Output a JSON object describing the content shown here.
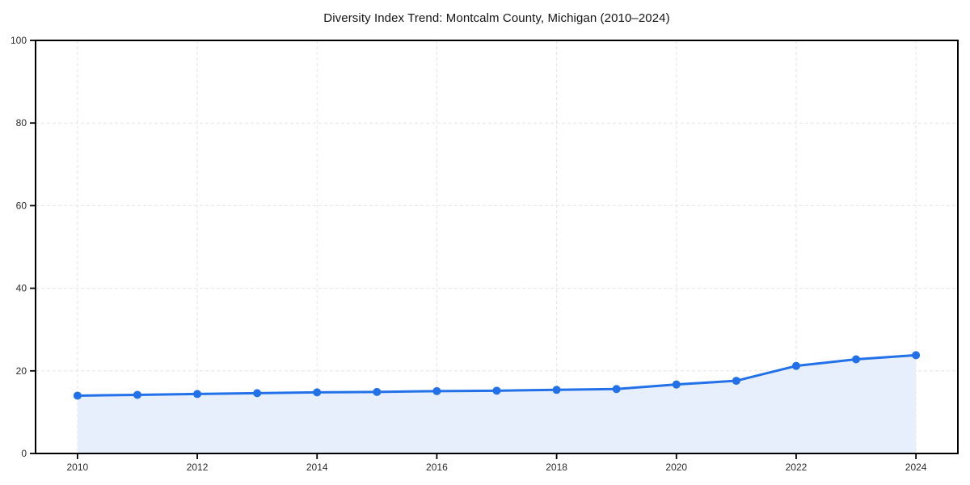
{
  "page": {
    "background_color": "#ffffff"
  },
  "chart_data": {
    "type": "line",
    "title": "Diversity Index Trend: Montcalm County, Michigan (2010–2024)",
    "xlabel": "",
    "ylabel": "",
    "x": [
      2010,
      2011,
      2012,
      2013,
      2014,
      2015,
      2016,
      2017,
      2018,
      2019,
      2020,
      2021,
      2022,
      2023,
      2024
    ],
    "values": [
      14.0,
      14.2,
      14.4,
      14.6,
      14.8,
      14.9,
      15.1,
      15.2,
      15.4,
      15.6,
      16.7,
      17.6,
      21.2,
      22.8,
      23.8
    ],
    "series_name": "Diversity Index",
    "ylim": [
      0,
      100
    ],
    "yticks": [
      0,
      20,
      40,
      60,
      80,
      100
    ],
    "xticks": [
      2010,
      2012,
      2014,
      2016,
      2018,
      2020,
      2022,
      2024
    ],
    "grid": true,
    "grid_style": "dashed",
    "legend": "none",
    "marker": "circle",
    "area_fill": true
  },
  "colors": {
    "line": "#2271e8",
    "marker": "#2271e8",
    "area_fill": "#e7eefc",
    "gridline": "#e4e4e4",
    "axis_box": "#000000",
    "tick": "#000000",
    "tick_label": "#2b2b2b",
    "title": "#141414"
  }
}
